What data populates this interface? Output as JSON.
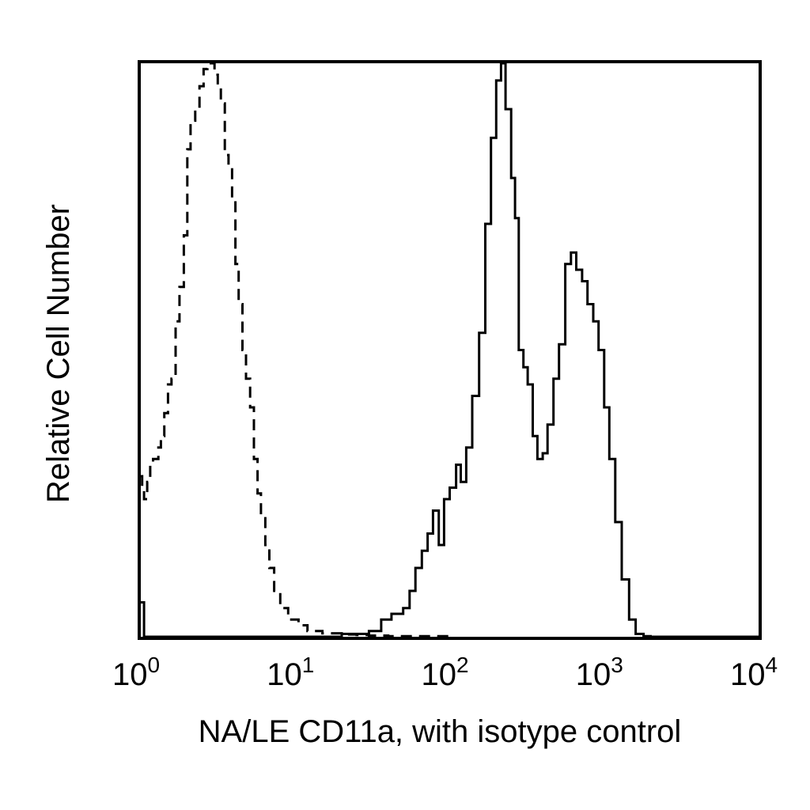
{
  "chart_data": {
    "type": "line",
    "title": "",
    "xlabel": "NA/LE CD11a, with isotype control",
    "ylabel": "Relative Cell Number",
    "x_scale": "log",
    "xlim": [
      1,
      10000
    ],
    "ylim": [
      0,
      1
    ],
    "grid": false,
    "x_ticks": [
      {
        "value": 1,
        "base": "10",
        "exp": "0"
      },
      {
        "value": 10,
        "base": "10",
        "exp": "1"
      },
      {
        "value": 100,
        "base": "10",
        "exp": "2"
      },
      {
        "value": 1000,
        "base": "10",
        "exp": "3"
      },
      {
        "value": 10000,
        "base": "10",
        "exp": "4"
      }
    ],
    "series": [
      {
        "style": "dashed",
        "x": [
          1.0,
          1.02,
          1.05,
          1.1,
          1.15,
          1.2,
          1.3,
          1.35,
          1.42,
          1.5,
          1.58,
          1.68,
          1.78,
          1.9,
          2.0,
          2.1,
          2.25,
          2.4,
          2.55,
          2.7,
          2.85,
          3.0,
          3.15,
          3.3,
          3.5,
          3.7,
          3.9,
          4.1,
          4.3,
          4.55,
          4.8,
          5.1,
          5.4,
          5.7,
          6.0,
          6.4,
          6.8,
          7.3,
          8.0,
          9.0,
          10.5,
          12.0,
          15.0,
          20.0,
          25.0,
          30.0,
          40.0,
          60.0,
          100.0
        ],
        "y": [
          0.28,
          0.26,
          0.24,
          0.27,
          0.3,
          0.31,
          0.33,
          0.35,
          0.39,
          0.44,
          0.45,
          0.55,
          0.61,
          0.7,
          0.85,
          0.9,
          0.92,
          0.96,
          0.99,
          1.0,
          1.0,
          0.98,
          0.96,
          0.93,
          0.84,
          0.82,
          0.76,
          0.65,
          0.58,
          0.5,
          0.45,
          0.4,
          0.31,
          0.25,
          0.21,
          0.16,
          0.12,
          0.08,
          0.05,
          0.03,
          0.02,
          0.01,
          0.006,
          0.004,
          0.003,
          0.002,
          0.001,
          0.001,
          0.0
        ]
      },
      {
        "style": "solid",
        "x": [
          1.0,
          1.05,
          1.2,
          2.0,
          5.0,
          10.0,
          20.0,
          30.0,
          36.0,
          42.0,
          50.0,
          55.0,
          60.0,
          66.0,
          72.0,
          78.0,
          85.0,
          92.0,
          100.0,
          110.0,
          118.0,
          128.0,
          140.0,
          155.0,
          170.0,
          185.0,
          200.0,
          215.0,
          230.0,
          250.0,
          265.0,
          280.0,
          300.0,
          320.0,
          345.0,
          370.0,
          400.0,
          430.0,
          470.0,
          510.0,
          560.0,
          610.0,
          660.0,
          720.0,
          780.0,
          850.0,
          920.0,
          1000.0,
          1080.0,
          1180.0,
          1300.0,
          1450.0,
          1600.0,
          1800.0,
          2000.0,
          3000.0,
          10000.0
        ],
        "y": [
          0.06,
          0.0,
          0.0,
          0.0,
          0.0,
          0.0,
          0.005,
          0.01,
          0.03,
          0.04,
          0.05,
          0.08,
          0.12,
          0.15,
          0.18,
          0.22,
          0.16,
          0.24,
          0.26,
          0.3,
          0.27,
          0.33,
          0.42,
          0.53,
          0.72,
          0.87,
          0.97,
          1.0,
          0.92,
          0.8,
          0.73,
          0.5,
          0.47,
          0.44,
          0.35,
          0.31,
          0.32,
          0.37,
          0.45,
          0.51,
          0.65,
          0.67,
          0.64,
          0.62,
          0.58,
          0.55,
          0.5,
          0.4,
          0.31,
          0.2,
          0.1,
          0.03,
          0.005,
          0.001,
          0.0,
          0.0,
          0.0
        ]
      }
    ]
  }
}
